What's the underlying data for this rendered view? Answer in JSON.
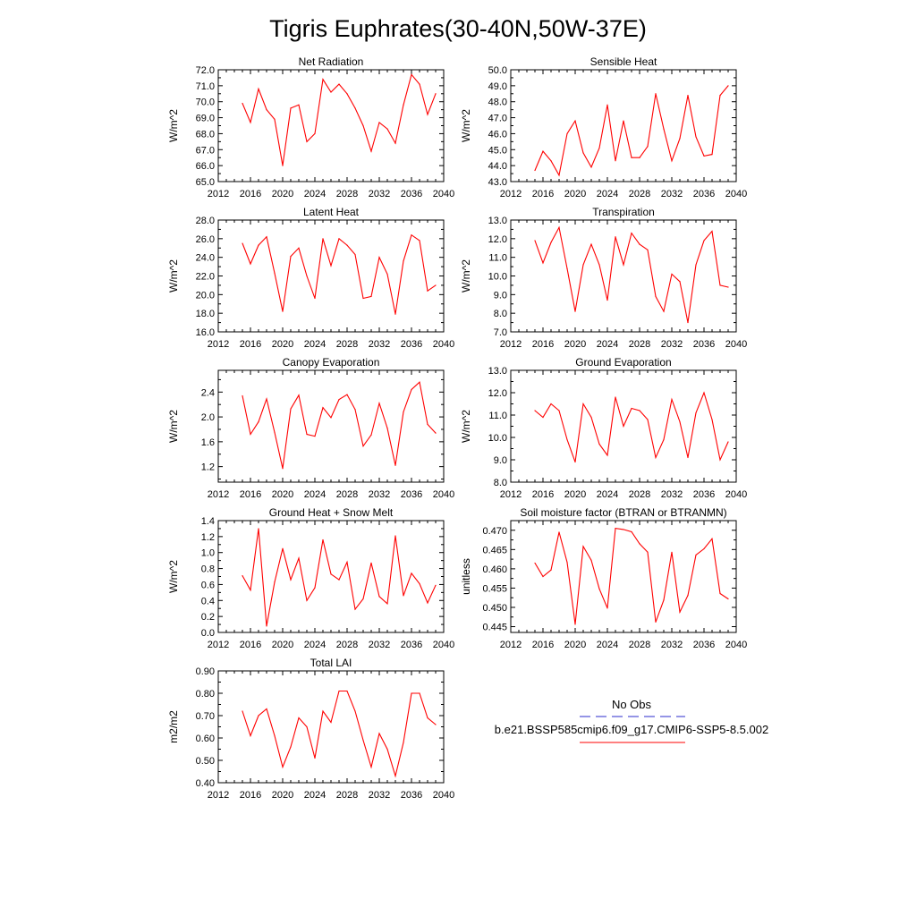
{
  "page": {
    "title": "Tigris Euphrates(30-40N,50W-37E)"
  },
  "legend": {
    "entries": [
      {
        "label": "No Obs",
        "color": "#2b2bcc",
        "dash": true
      },
      {
        "label": "b.e21.BSSP585cmip6.f09_g17.CMIP6-SSP5-8.5.002",
        "color": "#ff0000",
        "dash": false
      }
    ]
  },
  "colors": {
    "series": "#ff0000",
    "axis": "#000000"
  },
  "chart_data": [
    {
      "type": "line",
      "title": "Net Radiation",
      "ylabel": "W/m^2",
      "xlim": [
        2012,
        2040
      ],
      "x_ticks": [
        "2012",
        "2016",
        "2020",
        "2024",
        "2028",
        "2032",
        "2036",
        "2040"
      ],
      "ylim": [
        65.0,
        72.0
      ],
      "y_ticks": [
        "65.0",
        "66.0",
        "67.0",
        "68.0",
        "69.0",
        "70.0",
        "71.0",
        "72.0"
      ],
      "x": [
        2015,
        2016,
        2017,
        2018,
        2019,
        2020,
        2021,
        2022,
        2023,
        2024,
        2025,
        2026,
        2027,
        2028,
        2029,
        2030,
        2031,
        2032,
        2033,
        2034,
        2035,
        2036,
        2037,
        2038,
        2039
      ],
      "values": [
        69.9,
        68.7,
        70.8,
        69.5,
        68.9,
        66.0,
        69.6,
        69.8,
        67.5,
        68.0,
        71.4,
        70.6,
        71.1,
        70.5,
        69.6,
        68.5,
        66.9,
        68.7,
        68.3,
        67.4,
        69.8,
        71.7,
        71.1,
        69.2,
        70.5
      ],
      "series_color": "#ff0000"
    },
    {
      "type": "line",
      "title": "Sensible Heat",
      "ylabel": "W/m^2",
      "xlim": [
        2012,
        2040
      ],
      "x_ticks": [
        "2012",
        "2016",
        "2020",
        "2024",
        "2028",
        "2032",
        "2036",
        "2040"
      ],
      "ylim": [
        43.0,
        50.0
      ],
      "y_ticks": [
        "43.0",
        "44.0",
        "45.0",
        "46.0",
        "47.0",
        "48.0",
        "49.0",
        "50.0"
      ],
      "x": [
        2015,
        2016,
        2017,
        2018,
        2019,
        2020,
        2021,
        2022,
        2023,
        2024,
        2025,
        2026,
        2027,
        2028,
        2029,
        2030,
        2031,
        2032,
        2033,
        2034,
        2035,
        2036,
        2037,
        2038,
        2039
      ],
      "values": [
        43.7,
        44.9,
        44.3,
        43.4,
        46.0,
        46.8,
        44.8,
        43.9,
        45.1,
        47.8,
        44.3,
        46.8,
        44.5,
        44.5,
        45.2,
        48.5,
        46.3,
        44.3,
        45.7,
        48.4,
        45.8,
        44.6,
        44.7,
        48.4,
        49.0
      ],
      "series_color": "#ff0000"
    },
    {
      "type": "line",
      "title": "Latent Heat",
      "ylabel": "W/m^2",
      "xlim": [
        2012,
        2040
      ],
      "x_ticks": [
        "2012",
        "2016",
        "2020",
        "2024",
        "2028",
        "2032",
        "2036",
        "2040"
      ],
      "ylim": [
        16.0,
        28.0
      ],
      "y_ticks": [
        "16.0",
        "18.0",
        "20.0",
        "22.0",
        "24.0",
        "26.0",
        "28.0"
      ],
      "x": [
        2015,
        2016,
        2017,
        2018,
        2019,
        2020,
        2021,
        2022,
        2023,
        2024,
        2025,
        2026,
        2027,
        2028,
        2029,
        2030,
        2031,
        2032,
        2033,
        2034,
        2035,
        2036,
        2037,
        2038,
        2039
      ],
      "values": [
        25.5,
        23.3,
        25.3,
        26.2,
        22.3,
        18.2,
        24.1,
        25.0,
        22.0,
        19.6,
        26.0,
        23.1,
        26.0,
        25.3,
        24.3,
        19.6,
        19.8,
        24.0,
        22.2,
        17.9,
        23.6,
        26.4,
        25.8,
        20.4,
        21.0
      ],
      "series_color": "#ff0000"
    },
    {
      "type": "line",
      "title": "Transpiration",
      "ylabel": "W/m^2",
      "xlim": [
        2012,
        2040
      ],
      "x_ticks": [
        "2012",
        "2016",
        "2020",
        "2024",
        "2028",
        "2032",
        "2036",
        "2040"
      ],
      "ylim": [
        7.0,
        13.0
      ],
      "y_ticks": [
        "7.0",
        "8.0",
        "9.0",
        "10.0",
        "11.0",
        "12.0",
        "13.0"
      ],
      "x": [
        2015,
        2016,
        2017,
        2018,
        2019,
        2020,
        2021,
        2022,
        2023,
        2024,
        2025,
        2026,
        2027,
        2028,
        2029,
        2030,
        2031,
        2032,
        2033,
        2034,
        2035,
        2036,
        2037,
        2038,
        2039
      ],
      "values": [
        11.9,
        10.7,
        11.8,
        12.6,
        10.4,
        8.1,
        10.6,
        11.7,
        10.6,
        8.7,
        12.1,
        10.6,
        12.3,
        11.7,
        11.4,
        8.9,
        8.1,
        10.1,
        9.7,
        7.5,
        10.6,
        11.9,
        12.4,
        9.5,
        9.4
      ],
      "series_color": "#ff0000"
    },
    {
      "type": "line",
      "title": "Canopy Evaporation",
      "ylabel": "W/m^2",
      "xlim": [
        2012,
        2040
      ],
      "x_ticks": [
        "2012",
        "2016",
        "2020",
        "2024",
        "2028",
        "2032",
        "2036",
        "2040"
      ],
      "ylim": [
        0.95,
        2.75
      ],
      "y_ticks": [
        "1.2",
        "1.6",
        "2.0",
        "2.4"
      ],
      "x": [
        2015,
        2016,
        2017,
        2018,
        2019,
        2020,
        2021,
        2022,
        2023,
        2024,
        2025,
        2026,
        2027,
        2028,
        2029,
        2030,
        2031,
        2032,
        2033,
        2034,
        2035,
        2036,
        2037,
        2038,
        2039
      ],
      "values": [
        2.34,
        1.72,
        1.92,
        2.29,
        1.75,
        1.17,
        2.13,
        2.35,
        1.72,
        1.69,
        2.15,
        1.99,
        2.28,
        2.36,
        2.12,
        1.53,
        1.71,
        2.22,
        1.82,
        1.22,
        2.08,
        2.44,
        2.56,
        1.88,
        1.74
      ],
      "series_color": "#ff0000"
    },
    {
      "type": "line",
      "title": "Ground Evaporation",
      "ylabel": "W/m^2",
      "xlim": [
        2012,
        2040
      ],
      "x_ticks": [
        "2012",
        "2016",
        "2020",
        "2024",
        "2028",
        "2032",
        "2036",
        "2040"
      ],
      "ylim": [
        8.0,
        13.0
      ],
      "y_ticks": [
        "8.0",
        "9.0",
        "10.0",
        "11.0",
        "12.0",
        "13.0"
      ],
      "x": [
        2015,
        2016,
        2017,
        2018,
        2019,
        2020,
        2021,
        2022,
        2023,
        2024,
        2025,
        2026,
        2027,
        2028,
        2029,
        2030,
        2031,
        2032,
        2033,
        2034,
        2035,
        2036,
        2037,
        2038,
        2039
      ],
      "values": [
        11.2,
        10.9,
        11.5,
        11.2,
        9.9,
        8.9,
        11.5,
        10.9,
        9.7,
        9.2,
        11.8,
        10.5,
        11.3,
        11.2,
        10.8,
        9.1,
        9.9,
        11.7,
        10.7,
        9.1,
        11.1,
        12.0,
        10.8,
        9.0,
        9.8
      ],
      "series_color": "#ff0000"
    },
    {
      "type": "line",
      "title": "Ground Heat + Snow Melt",
      "ylabel": "W/m^2",
      "xlim": [
        2012,
        2040
      ],
      "x_ticks": [
        "2012",
        "2016",
        "2020",
        "2024",
        "2028",
        "2032",
        "2036",
        "2040"
      ],
      "ylim": [
        0.0,
        1.4
      ],
      "y_ticks": [
        "0.0",
        "0.2",
        "0.4",
        "0.6",
        "0.8",
        "1.0",
        "1.2",
        "1.4"
      ],
      "x": [
        2015,
        2016,
        2017,
        2018,
        2019,
        2020,
        2021,
        2022,
        2023,
        2024,
        2025,
        2026,
        2027,
        2028,
        2029,
        2030,
        2031,
        2032,
        2033,
        2034,
        2035,
        2036,
        2037,
        2038,
        2039
      ],
      "values": [
        0.71,
        0.53,
        1.3,
        0.08,
        0.63,
        1.05,
        0.66,
        0.93,
        0.4,
        0.56,
        1.16,
        0.73,
        0.66,
        0.88,
        0.29,
        0.42,
        0.87,
        0.45,
        0.36,
        1.21,
        0.46,
        0.74,
        0.61,
        0.37,
        0.59
      ],
      "series_color": "#ff0000"
    },
    {
      "type": "line",
      "title": "Soil moisture factor (BTRAN or BTRANMN)",
      "ylabel": "unitless",
      "xlim": [
        2012,
        2040
      ],
      "x_ticks": [
        "2012",
        "2016",
        "2020",
        "2024",
        "2028",
        "2032",
        "2036",
        "2040"
      ],
      "ylim": [
        0.4435,
        0.4725
      ],
      "y_ticks": [
        "0.445",
        "0.450",
        "0.455",
        "0.460",
        "0.465",
        "0.470"
      ],
      "x": [
        2015,
        2016,
        2017,
        2018,
        2019,
        2020,
        2021,
        2022,
        2023,
        2024,
        2025,
        2026,
        2027,
        2028,
        2029,
        2030,
        2031,
        2032,
        2033,
        2034,
        2035,
        2036,
        2037,
        2038,
        2039
      ],
      "values": [
        0.4615,
        0.458,
        0.4597,
        0.4695,
        0.4617,
        0.4456,
        0.4658,
        0.4622,
        0.4548,
        0.4498,
        0.4705,
        0.4702,
        0.4696,
        0.4665,
        0.4643,
        0.4462,
        0.4519,
        0.4643,
        0.4488,
        0.4531,
        0.4636,
        0.4652,
        0.4678,
        0.4536,
        0.4522
      ],
      "series_color": "#ff0000"
    },
    {
      "type": "line",
      "title": "Total LAI",
      "ylabel": "m2/m2",
      "xlim": [
        2012,
        2040
      ],
      "x_ticks": [
        "2012",
        "2016",
        "2020",
        "2024",
        "2028",
        "2032",
        "2036",
        "2040"
      ],
      "ylim": [
        0.4,
        0.9
      ],
      "y_ticks": [
        "0.40",
        "0.50",
        "0.60",
        "0.70",
        "0.80",
        "0.90"
      ],
      "x": [
        2015,
        2016,
        2017,
        2018,
        2019,
        2020,
        2021,
        2022,
        2023,
        2024,
        2025,
        2026,
        2027,
        2028,
        2029,
        2030,
        2031,
        2032,
        2033,
        2034,
        2035,
        2036,
        2037,
        2038,
        2039
      ],
      "values": [
        0.72,
        0.61,
        0.7,
        0.73,
        0.61,
        0.47,
        0.56,
        0.69,
        0.65,
        0.51,
        0.72,
        0.67,
        0.81,
        0.81,
        0.72,
        0.59,
        0.47,
        0.62,
        0.55,
        0.43,
        0.58,
        0.8,
        0.8,
        0.69,
        0.66
      ],
      "series_color": "#ff0000"
    }
  ]
}
